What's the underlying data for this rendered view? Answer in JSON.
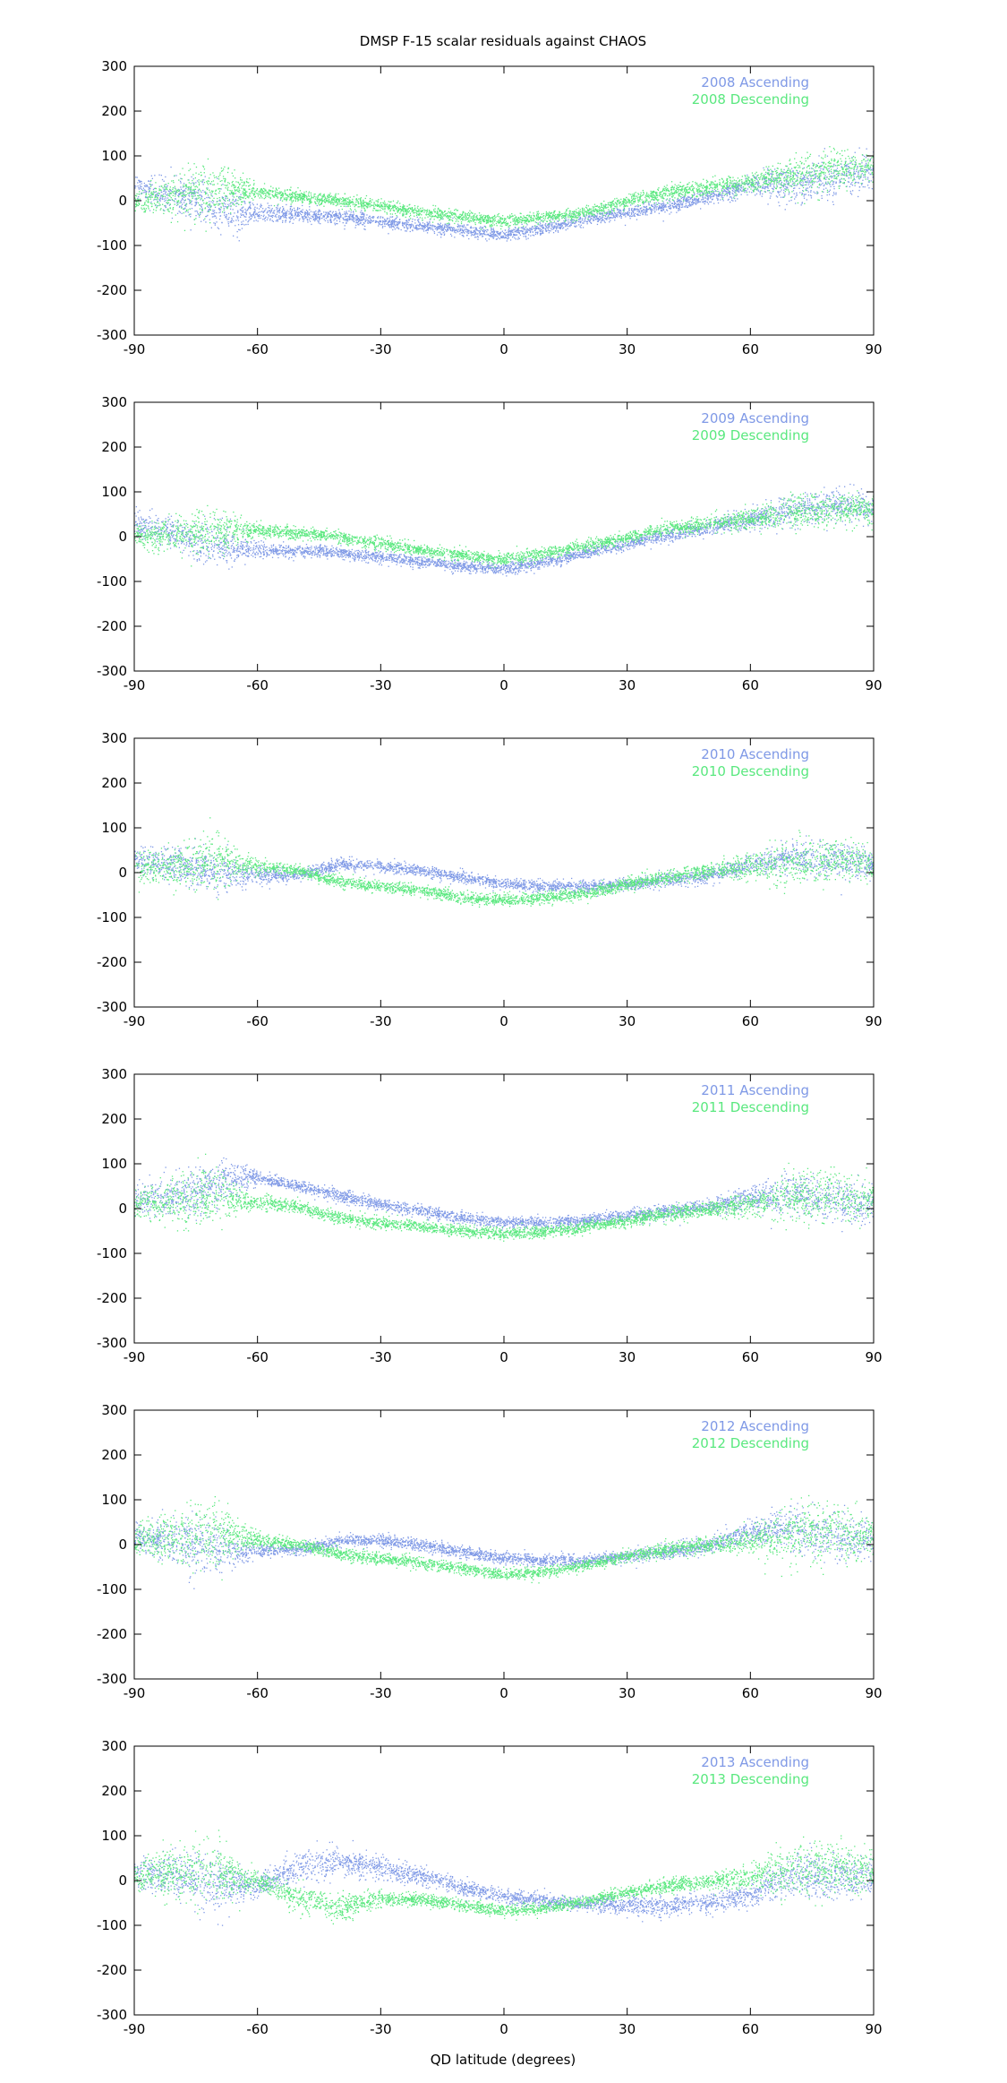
{
  "chart_data": {
    "type": "scatter",
    "title": "DMSP F-15 scalar residuals against CHAOS",
    "xlabel": "QD latitude (degrees)",
    "ylabel": "",
    "xlim": [
      -90,
      90
    ],
    "ylim": [
      -300,
      300
    ],
    "xticks": [
      "-90",
      "-60",
      "-30",
      "0",
      "30",
      "60",
      "90"
    ],
    "yticks": [
      "300",
      "200",
      "100",
      "0",
      "-100",
      "-200",
      "-300"
    ],
    "grid": false,
    "legend_position": "top-right",
    "colors": {
      "ascending": "#7f99e6",
      "descending": "#5ae87f"
    },
    "panels": [
      {
        "legend": [
          "2008 Ascending",
          "2008 Descending"
        ],
        "series": [
          {
            "name": "2008 Ascending",
            "x": [
              -90,
              -80,
              -75,
              -70,
              -65,
              -60,
              -50,
              -40,
              -30,
              -20,
              -10,
              0,
              10,
              20,
              30,
              40,
              50,
              60,
              70,
              80,
              90
            ],
            "y": [
              30,
              10,
              0,
              -20,
              -25,
              -25,
              -30,
              -35,
              -45,
              -55,
              -65,
              -75,
              -60,
              -40,
              -25,
              -10,
              10,
              35,
              40,
              50,
              70
            ],
            "spread": [
              25,
              35,
              45,
              50,
              40,
              20,
              15,
              15,
              12,
              12,
              12,
              12,
              12,
              12,
              12,
              15,
              15,
              20,
              35,
              40,
              35
            ]
          },
          {
            "name": "2008 Descending",
            "x": [
              -90,
              -80,
              -75,
              -70,
              -65,
              -60,
              -50,
              -40,
              -30,
              -20,
              -10,
              0,
              10,
              20,
              30,
              40,
              50,
              60,
              70,
              80,
              90
            ],
            "y": [
              0,
              10,
              20,
              30,
              25,
              20,
              10,
              0,
              -10,
              -25,
              -35,
              -45,
              -35,
              -25,
              0,
              20,
              30,
              40,
              55,
              70,
              80
            ],
            "spread": [
              25,
              40,
              55,
              55,
              30,
              15,
              12,
              12,
              12,
              12,
              12,
              12,
              12,
              12,
              12,
              15,
              15,
              20,
              35,
              40,
              30
            ]
          }
        ]
      },
      {
        "legend": [
          "2009 Ascending",
          "2009 Descending"
        ],
        "series": [
          {
            "name": "2009 Ascending",
            "x": [
              -90,
              -80,
              -75,
              -70,
              -65,
              -60,
              -50,
              -40,
              -30,
              -20,
              -10,
              0,
              10,
              20,
              30,
              40,
              50,
              60,
              70,
              80,
              90
            ],
            "y": [
              30,
              10,
              -10,
              -20,
              -25,
              -30,
              -30,
              -35,
              -45,
              -55,
              -65,
              -70,
              -55,
              -35,
              -15,
              5,
              20,
              40,
              60,
              70,
              65
            ],
            "spread": [
              25,
              30,
              40,
              45,
              30,
              15,
              12,
              12,
              12,
              12,
              12,
              12,
              12,
              12,
              12,
              15,
              15,
              20,
              30,
              35,
              30
            ]
          },
          {
            "name": "2009 Descending",
            "x": [
              -90,
              -80,
              -75,
              -70,
              -65,
              -60,
              -50,
              -40,
              -30,
              -20,
              -10,
              0,
              10,
              20,
              30,
              40,
              50,
              60,
              70,
              80,
              90
            ],
            "y": [
              0,
              5,
              10,
              15,
              15,
              15,
              10,
              0,
              -15,
              -30,
              -40,
              -50,
              -35,
              -20,
              0,
              20,
              30,
              40,
              55,
              60,
              60
            ],
            "spread": [
              25,
              35,
              45,
              45,
              30,
              15,
              12,
              12,
              12,
              12,
              12,
              12,
              12,
              12,
              12,
              15,
              15,
              20,
              30,
              35,
              30
            ]
          }
        ]
      },
      {
        "legend": [
          "2010 Ascending",
          "2010 Descending"
        ],
        "series": [
          {
            "name": "2010 Ascending",
            "x": [
              -90,
              -80,
              -75,
              -70,
              -65,
              -60,
              -50,
              -40,
              -30,
              -20,
              -10,
              0,
              10,
              20,
              30,
              40,
              50,
              60,
              70,
              80,
              90
            ],
            "y": [
              30,
              20,
              10,
              0,
              0,
              -5,
              -5,
              20,
              15,
              5,
              -10,
              -25,
              -30,
              -30,
              -25,
              -15,
              -5,
              20,
              35,
              30,
              20
            ],
            "spread": [
              25,
              35,
              45,
              45,
              30,
              15,
              12,
              12,
              12,
              12,
              12,
              12,
              12,
              12,
              12,
              15,
              15,
              20,
              35,
              40,
              30
            ]
          },
          {
            "name": "2010 Descending",
            "x": [
              -90,
              -80,
              -75,
              -70,
              -65,
              -60,
              -50,
              -40,
              -30,
              -20,
              -10,
              0,
              10,
              20,
              30,
              40,
              50,
              60,
              70,
              80,
              90
            ],
            "y": [
              10,
              15,
              20,
              25,
              20,
              15,
              5,
              -20,
              -30,
              -40,
              -55,
              -60,
              -55,
              -45,
              -25,
              -10,
              5,
              15,
              25,
              30,
              20
            ],
            "spread": [
              25,
              40,
              55,
              60,
              30,
              15,
              12,
              12,
              12,
              12,
              12,
              12,
              12,
              12,
              12,
              15,
              15,
              25,
              45,
              45,
              30
            ]
          }
        ]
      },
      {
        "legend": [
          "2011 Ascending",
          "2011 Descending"
        ],
        "series": [
          {
            "name": "2011 Ascending",
            "x": [
              -90,
              -80,
              -75,
              -70,
              -65,
              -60,
              -50,
              -40,
              -30,
              -20,
              -10,
              0,
              10,
              20,
              30,
              40,
              50,
              60,
              70,
              80,
              90
            ],
            "y": [
              20,
              30,
              40,
              50,
              70,
              70,
              50,
              30,
              10,
              -5,
              -20,
              -30,
              -30,
              -25,
              -15,
              -5,
              5,
              25,
              35,
              20,
              10
            ],
            "spread": [
              30,
              40,
              50,
              50,
              30,
              15,
              12,
              12,
              12,
              12,
              12,
              12,
              12,
              12,
              12,
              15,
              15,
              25,
              40,
              45,
              35
            ]
          },
          {
            "name": "2011 Descending",
            "x": [
              -90,
              -80,
              -75,
              -70,
              -65,
              -60,
              -50,
              -40,
              -30,
              -20,
              -10,
              0,
              10,
              20,
              30,
              40,
              50,
              60,
              70,
              80,
              90
            ],
            "y": [
              10,
              20,
              25,
              30,
              20,
              15,
              5,
              -20,
              -30,
              -40,
              -50,
              -55,
              -50,
              -40,
              -25,
              -10,
              0,
              10,
              25,
              30,
              20
            ],
            "spread": [
              30,
              45,
              60,
              60,
              30,
              15,
              12,
              12,
              12,
              12,
              12,
              12,
              12,
              12,
              12,
              15,
              15,
              25,
              50,
              50,
              35
            ]
          }
        ]
      },
      {
        "legend": [
          "2012 Ascending",
          "2012 Descending"
        ],
        "series": [
          {
            "name": "2012 Ascending",
            "x": [
              -90,
              -80,
              -75,
              -70,
              -65,
              -60,
              -50,
              -40,
              -30,
              -20,
              -10,
              0,
              10,
              20,
              30,
              40,
              50,
              60,
              70,
              80,
              90
            ],
            "y": [
              20,
              10,
              0,
              -10,
              -15,
              -15,
              -10,
              10,
              10,
              0,
              -15,
              -30,
              -35,
              -35,
              -25,
              -15,
              0,
              30,
              40,
              20,
              10
            ],
            "spread": [
              30,
              45,
              55,
              55,
              30,
              15,
              12,
              12,
              12,
              12,
              12,
              12,
              12,
              12,
              12,
              15,
              15,
              25,
              45,
              50,
              35
            ]
          },
          {
            "name": "2012 Descending",
            "x": [
              -90,
              -80,
              -75,
              -70,
              -65,
              -60,
              -50,
              -40,
              -30,
              -20,
              -10,
              0,
              10,
              20,
              30,
              40,
              50,
              60,
              70,
              80,
              90
            ],
            "y": [
              10,
              20,
              25,
              30,
              20,
              10,
              0,
              -20,
              -30,
              -40,
              -55,
              -65,
              -60,
              -45,
              -25,
              -10,
              0,
              10,
              25,
              30,
              20
            ],
            "spread": [
              30,
              50,
              70,
              70,
              35,
              15,
              12,
              12,
              12,
              12,
              12,
              12,
              12,
              12,
              12,
              15,
              15,
              25,
              60,
              60,
              35
            ]
          }
        ]
      },
      {
        "legend": [
          "2013 Ascending",
          "2013 Descending"
        ],
        "series": [
          {
            "name": "2013 Ascending",
            "x": [
              -90,
              -80,
              -75,
              -70,
              -65,
              -60,
              -50,
              -40,
              -30,
              -20,
              -10,
              0,
              10,
              20,
              30,
              40,
              50,
              60,
              70,
              80,
              90
            ],
            "y": [
              20,
              10,
              0,
              -5,
              -10,
              -10,
              30,
              45,
              30,
              10,
              -15,
              -35,
              -45,
              -50,
              -55,
              -55,
              -50,
              -30,
              10,
              10,
              10
            ],
            "spread": [
              30,
              45,
              55,
              55,
              35,
              20,
              30,
              30,
              25,
              20,
              15,
              15,
              15,
              15,
              20,
              20,
              20,
              25,
              45,
              50,
              35
            ]
          },
          {
            "name": "2013 Descending",
            "x": [
              -90,
              -80,
              -75,
              -70,
              -65,
              -60,
              -50,
              -40,
              -30,
              -20,
              -10,
              0,
              10,
              20,
              30,
              40,
              50,
              60,
              70,
              80,
              90
            ],
            "y": [
              10,
              20,
              25,
              20,
              10,
              0,
              -40,
              -60,
              -40,
              -40,
              -55,
              -65,
              -60,
              -45,
              -25,
              -10,
              0,
              10,
              25,
              30,
              20
            ],
            "spread": [
              30,
              50,
              65,
              65,
              35,
              20,
              30,
              30,
              15,
              12,
              12,
              12,
              12,
              12,
              12,
              15,
              15,
              25,
              55,
              55,
              35
            ]
          }
        ]
      }
    ]
  }
}
